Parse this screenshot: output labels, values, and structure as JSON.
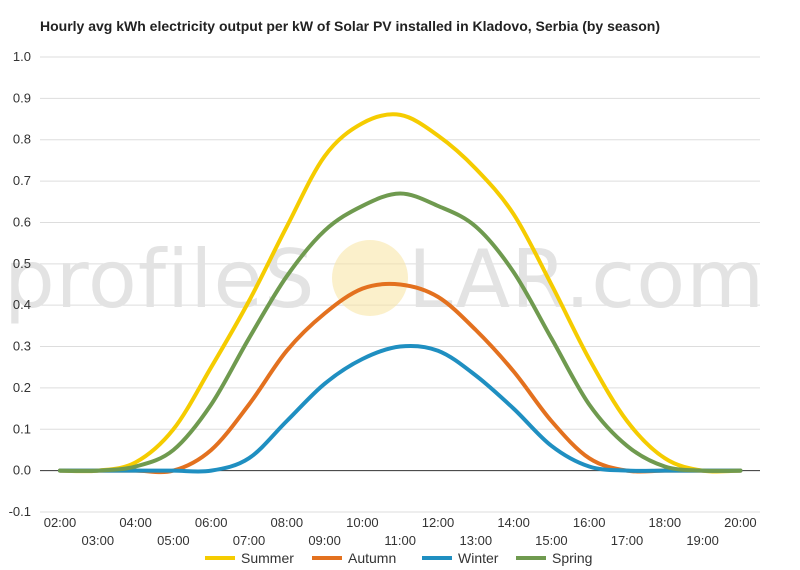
{
  "chart_data": {
    "type": "line",
    "title": "Hourly avg kWh electricity output per kW of Solar PV installed in Kladovo, Serbia (by season)",
    "xlabel": "",
    "ylabel": "",
    "ylim": [
      -0.1,
      1.0
    ],
    "yticks": [
      "1.0",
      "0.9",
      "0.8",
      "0.7",
      "0.6",
      "0.5",
      "0.4",
      "0.3",
      "0.2",
      "0.1",
      "0.0",
      "-0.1"
    ],
    "x": [
      "02:00",
      "03:00",
      "04:00",
      "05:00",
      "06:00",
      "07:00",
      "08:00",
      "09:00",
      "10:00",
      "11:00",
      "12:00",
      "13:00",
      "14:00",
      "15:00",
      "16:00",
      "17:00",
      "18:00",
      "19:00",
      "20:00"
    ],
    "series": [
      {
        "name": "Summer",
        "color": "#f5cc00",
        "values": [
          0.0,
          0.0,
          0.02,
          0.1,
          0.25,
          0.41,
          0.59,
          0.76,
          0.84,
          0.86,
          0.81,
          0.73,
          0.62,
          0.45,
          0.27,
          0.12,
          0.03,
          0.0,
          0.0
        ]
      },
      {
        "name": "Autumn",
        "color": "#e3711f",
        "values": [
          0.0,
          0.0,
          0.0,
          0.0,
          0.05,
          0.16,
          0.29,
          0.38,
          0.44,
          0.45,
          0.42,
          0.34,
          0.24,
          0.12,
          0.03,
          0.0,
          0.0,
          0.0,
          0.0
        ]
      },
      {
        "name": "Winter",
        "color": "#1f8fc1",
        "values": [
          0.0,
          0.0,
          0.0,
          0.0,
          0.0,
          0.03,
          0.12,
          0.21,
          0.27,
          0.3,
          0.29,
          0.23,
          0.15,
          0.06,
          0.01,
          0.0,
          0.0,
          0.0,
          0.0
        ]
      },
      {
        "name": "Spring",
        "color": "#6f9a4f",
        "values": [
          0.0,
          0.0,
          0.01,
          0.05,
          0.16,
          0.32,
          0.47,
          0.58,
          0.64,
          0.67,
          0.64,
          0.59,
          0.48,
          0.32,
          0.16,
          0.06,
          0.01,
          0.0,
          0.0
        ]
      }
    ],
    "legend_position": "bottom",
    "grid": true
  },
  "watermark": {
    "left": "profileS",
    "right": "LAR.com"
  }
}
